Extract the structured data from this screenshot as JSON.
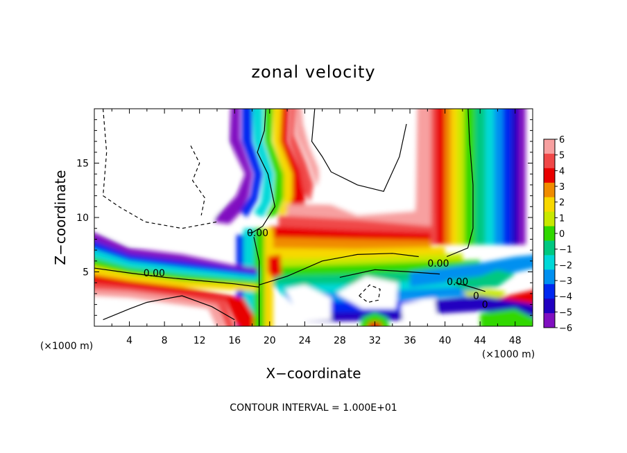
{
  "chart_data": {
    "type": "heatmap",
    "title": "zonal velocity",
    "xlabel": "X−coordinate",
    "ylabel": "Z−coordinate",
    "x_unit": "(×1000 m)",
    "z_unit": "(×1000 m)",
    "xlim": [
      0,
      50
    ],
    "ylim": [
      0,
      20
    ],
    "x_ticks": [
      4,
      8,
      12,
      16,
      20,
      24,
      28,
      32,
      36,
      40,
      44,
      48
    ],
    "x_tick_labels": [
      "4",
      "8",
      "12",
      "16",
      "20",
      "24",
      "28",
      "32",
      "36",
      "40",
      "44",
      "48"
    ],
    "y_ticks": [
      5,
      10,
      15
    ],
    "y_tick_labels": [
      "5",
      "10",
      "15"
    ],
    "colorbar": {
      "levels": [
        6,
        5,
        4,
        3,
        2,
        1,
        0,
        -1,
        -2,
        -3,
        -4,
        -5,
        -6
      ],
      "tick_labels": [
        "6",
        "5",
        "4",
        "3",
        "2",
        "1",
        "0",
        "−1",
        "−2",
        "−3",
        "−4",
        "−5",
        "−6"
      ],
      "colors": [
        "#f7a0a0",
        "#f04848",
        "#e80000",
        "#f08c00",
        "#f8d800",
        "#c8e800",
        "#30d800",
        "#00c880",
        "#00d8d8",
        "#0090f0",
        "#0028f0",
        "#2000c0",
        "#8010c0"
      ]
    },
    "contour_labels": [
      {
        "text": "0.00",
        "x": 5.6,
        "y": 4.9
      },
      {
        "text": "0.00",
        "x": 17.4,
        "y": 8.6
      },
      {
        "text": "0.00",
        "x": 38.0,
        "y": 5.8
      },
      {
        "text": "0.00",
        "x": 40.2,
        "y": 4.1
      },
      {
        "text": "0",
        "x": 43.2,
        "y": 2.8
      },
      {
        "text": "0",
        "x": 44.2,
        "y": 2.0
      }
    ],
    "footer": "CONTOUR INTERVAL = 1.000E+01"
  }
}
